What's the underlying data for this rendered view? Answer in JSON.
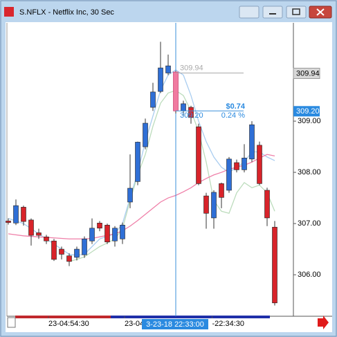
{
  "chart_data": {
    "type": "candlestick",
    "title": "S.NFLX - Netflix Inc, 30 Sec",
    "open": [
      307.05,
      307.01,
      307.32,
      307.07,
      306.82,
      306.74,
      306.66,
      306.5,
      306.37,
      306.34,
      306.39,
      306.66,
      307.01,
      306.97,
      306.66,
      306.7,
      307.42,
      307.82,
      308.5,
      309.27,
      309.58,
      309.94,
      309.96,
      309.2,
      309.27,
      308.89,
      307.54,
      307.11,
      307.78,
      307.65,
      308.19,
      308.05,
      308.26,
      308.53,
      307.65,
      306.93
    ],
    "high": [
      307.1,
      307.47,
      307.35,
      307.1,
      306.9,
      306.78,
      306.7,
      306.55,
      306.42,
      306.55,
      306.75,
      307.1,
      307.05,
      307.0,
      306.95,
      307.02,
      308.35,
      308.6,
      309.05,
      309.75,
      310.55,
      310.3,
      309.98,
      309.4,
      309.3,
      308.95,
      307.6,
      307.65,
      307.8,
      308.3,
      308.25,
      308.55,
      309.0,
      308.6,
      307.7,
      307.05
    ],
    "low": [
      306.98,
      306.97,
      306.96,
      306.57,
      306.7,
      306.6,
      306.27,
      306.3,
      306.17,
      306.28,
      306.33,
      306.6,
      306.85,
      306.6,
      306.55,
      306.6,
      307.3,
      307.75,
      308.45,
      309.2,
      309.55,
      309.9,
      309.15,
      309.1,
      308.95,
      307.75,
      306.9,
      306.9,
      307.3,
      307.6,
      308.0,
      308.0,
      308.2,
      307.75,
      306.95,
      305.4
    ],
    "close": [
      307.02,
      307.35,
      307.04,
      306.77,
      306.77,
      306.66,
      306.3,
      306.4,
      306.26,
      306.5,
      306.7,
      306.91,
      306.91,
      306.64,
      306.91,
      306.97,
      307.69,
      308.59,
      308.96,
      309.57,
      310.04,
      310.08,
      309.2,
      309.34,
      309.07,
      307.78,
      307.2,
      307.61,
      307.51,
      308.26,
      308.05,
      308.28,
      308.93,
      307.78,
      307.11,
      305.45
    ],
    "up_color": "#2f6fd6",
    "down_color": "#d8232a",
    "highlight_index": 22,
    "highlight_color": "#f07aa0",
    "overlays": [
      {
        "color": "#a9cdf0",
        "values": [
          307.1,
          307.05,
          307.0,
          306.9,
          306.8,
          306.7,
          306.6,
          306.5,
          306.4,
          306.38,
          306.4,
          306.55,
          306.7,
          306.75,
          306.8,
          307.0,
          307.5,
          308.0,
          308.6,
          309.1,
          309.6,
          309.9,
          310.0,
          309.9,
          309.5,
          309.0,
          308.6,
          308.3,
          308.1,
          308.0,
          308.1,
          308.2,
          308.4,
          308.4,
          308.3,
          308.23
        ]
      },
      {
        "color": "#bcdcbc",
        "values": [
          null,
          null,
          null,
          null,
          null,
          null,
          null,
          null,
          306.26,
          306.3,
          306.35,
          306.45,
          306.55,
          306.62,
          306.7,
          306.9,
          307.45,
          307.95,
          308.35,
          308.9,
          309.35,
          309.55,
          309.6,
          309.5,
          309.2,
          308.8,
          308.2,
          307.45,
          307.24,
          307.2,
          307.6,
          307.8,
          307.7,
          307.75,
          307.6,
          307.24
        ]
      },
      {
        "color": "#ef7fa8",
        "values": [
          306.8,
          306.78,
          306.76,
          306.75,
          306.74,
          306.73,
          306.72,
          306.71,
          306.7,
          306.7,
          306.7,
          306.71,
          306.74,
          306.77,
          306.8,
          306.86,
          306.95,
          307.06,
          307.18,
          307.3,
          307.42,
          307.5,
          307.55,
          307.62,
          307.7,
          307.8,
          307.88,
          307.95,
          308.0,
          308.06,
          308.1,
          308.14,
          308.2,
          308.28,
          308.35,
          308.32
        ]
      }
    ],
    "ylim": [
      305.19,
      310.92
    ],
    "yticks": [
      {
        "value": 306,
        "label": "306.00"
      },
      {
        "value": 307,
        "label": "307.00"
      },
      {
        "value": 308,
        "label": "308.00"
      },
      {
        "value": 309,
        "label": "309.00"
      }
    ],
    "xticks": [
      {
        "value": 5,
        "label": "23-04:54:30"
      },
      {
        "value": 15,
        "label": "23-04"
      },
      {
        "value": 26.5,
        "label": "-22:34:30"
      }
    ],
    "cursor": {
      "value": 22,
      "label": "3-23-18 22:33:00"
    },
    "measure": {
      "from": {
        "value": 309.94,
        "label": "309.94"
      },
      "to": {
        "value": 309.2,
        "label": "309.20"
      },
      "change": {
        "value": 0.74,
        "label": "$0.74"
      },
      "percent": {
        "value": 0.24,
        "label": "0.24 %"
      }
    }
  }
}
